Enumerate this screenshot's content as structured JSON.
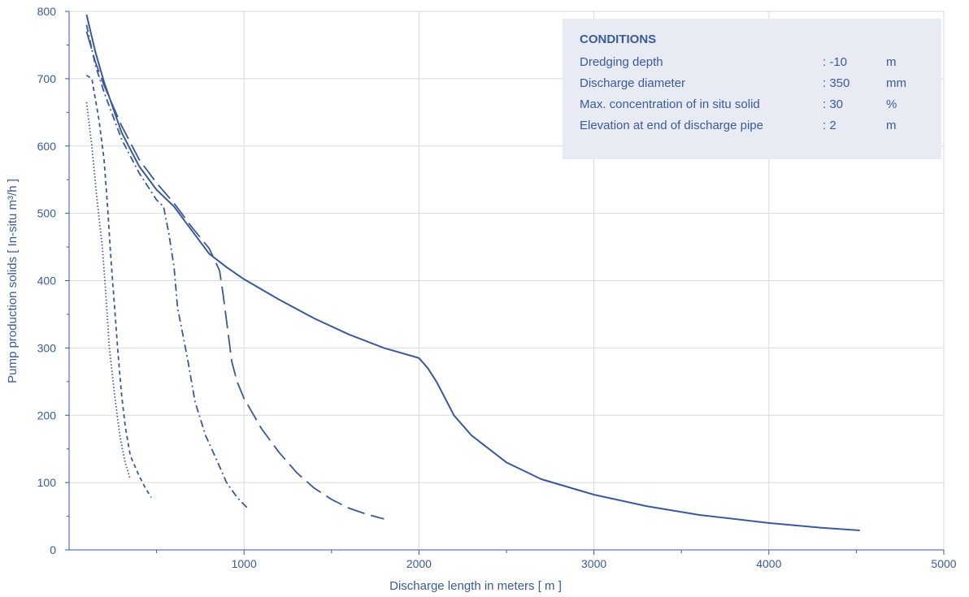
{
  "colors": {
    "series": "#3b5998",
    "grid": "#d9d9d9",
    "text": "#3a5a9a",
    "panel": "#e8ebf4"
  },
  "chart_data": {
    "type": "line",
    "xlabel": "Discharge length in meters [ m ]",
    "ylabel": "Pump production solids [ In-situ m³/h ]",
    "xlim": [
      0,
      5000
    ],
    "ylim": [
      0,
      800
    ],
    "xticks": [
      1000,
      2000,
      3000,
      4000,
      5000
    ],
    "yticks": [
      0,
      100,
      200,
      300,
      400,
      500,
      600,
      700,
      800
    ],
    "grid": true,
    "series": [
      {
        "style": "solid",
        "points": [
          [
            100,
            795
          ],
          [
            150,
            740
          ],
          [
            200,
            695
          ],
          [
            300,
            620
          ],
          [
            400,
            570
          ],
          [
            500,
            535
          ],
          [
            600,
            510
          ],
          [
            700,
            475
          ],
          [
            800,
            440
          ],
          [
            900,
            420
          ],
          [
            1000,
            402
          ],
          [
            1200,
            372
          ],
          [
            1400,
            344
          ],
          [
            1600,
            320
          ],
          [
            1800,
            300
          ],
          [
            2000,
            285
          ],
          [
            2050,
            270
          ],
          [
            2100,
            250
          ],
          [
            2150,
            225
          ],
          [
            2200,
            200
          ],
          [
            2300,
            170
          ],
          [
            2500,
            130
          ],
          [
            2700,
            105
          ],
          [
            3000,
            82
          ],
          [
            3300,
            65
          ],
          [
            3600,
            52
          ],
          [
            4000,
            40
          ],
          [
            4300,
            33
          ],
          [
            4520,
            29
          ]
        ]
      },
      {
        "style": "long-dash",
        "points": [
          [
            100,
            770
          ],
          [
            150,
            725
          ],
          [
            200,
            690
          ],
          [
            300,
            630
          ],
          [
            400,
            580
          ],
          [
            500,
            545
          ],
          [
            600,
            515
          ],
          [
            700,
            480
          ],
          [
            800,
            448
          ],
          [
            860,
            415
          ],
          [
            880,
            380
          ],
          [
            900,
            340
          ],
          [
            930,
            280
          ],
          [
            960,
            250
          ],
          [
            1000,
            225
          ],
          [
            1100,
            180
          ],
          [
            1200,
            145
          ],
          [
            1300,
            115
          ],
          [
            1400,
            92
          ],
          [
            1500,
            75
          ],
          [
            1600,
            62
          ],
          [
            1700,
            53
          ],
          [
            1800,
            46
          ]
        ]
      },
      {
        "style": "dash-dot",
        "points": [
          [
            100,
            780
          ],
          [
            150,
            720
          ],
          [
            200,
            680
          ],
          [
            300,
            610
          ],
          [
            400,
            560
          ],
          [
            500,
            520
          ],
          [
            540,
            510
          ],
          [
            570,
            470
          ],
          [
            600,
            420
          ],
          [
            620,
            360
          ],
          [
            650,
            320
          ],
          [
            680,
            280
          ],
          [
            720,
            220
          ],
          [
            780,
            170
          ],
          [
            850,
            130
          ],
          [
            900,
            100
          ],
          [
            960,
            78
          ],
          [
            1020,
            62
          ]
        ]
      },
      {
        "style": "short-dash",
        "points": [
          [
            100,
            705
          ],
          [
            130,
            700
          ],
          [
            170,
            640
          ],
          [
            200,
            580
          ],
          [
            220,
            510
          ],
          [
            240,
            430
          ],
          [
            260,
            360
          ],
          [
            280,
            290
          ],
          [
            300,
            230
          ],
          [
            320,
            185
          ],
          [
            350,
            140
          ],
          [
            400,
            110
          ],
          [
            440,
            90
          ],
          [
            470,
            78
          ]
        ]
      },
      {
        "style": "dotted",
        "points": [
          [
            100,
            665
          ],
          [
            130,
            600
          ],
          [
            160,
            520
          ],
          [
            190,
            450
          ],
          [
            210,
            380
          ],
          [
            230,
            300
          ],
          [
            260,
            230
          ],
          [
            290,
            170
          ],
          [
            320,
            130
          ],
          [
            350,
            105
          ]
        ]
      }
    ]
  },
  "conditions": {
    "title": "CONDITIONS",
    "rows": [
      {
        "label": "Dredging depth",
        "value": ": -10",
        "unit": "m"
      },
      {
        "label": "Discharge diameter",
        "value": ": 350",
        "unit": "mm"
      },
      {
        "label": "Max. concentration of in situ solid",
        "value": ": 30",
        "unit": "%"
      },
      {
        "label": "Elevation at end of discharge pipe",
        "value": ": 2",
        "unit": "m"
      }
    ]
  }
}
